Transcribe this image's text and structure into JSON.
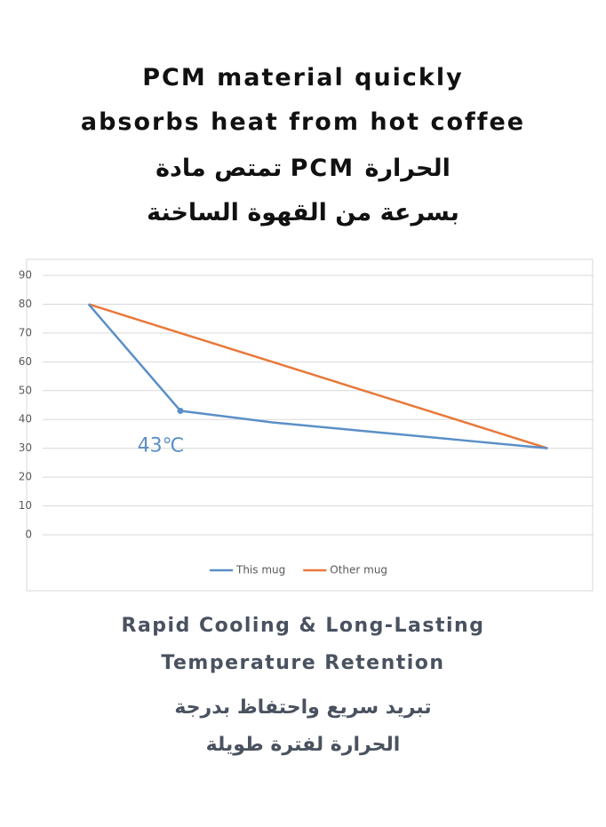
{
  "heading": [
    "PCM material quickly",
    "absorbs heat from hot coffee",
    "تمتص مادة PCM الحرارة",
    "بسرعة من القهوة الساخنة"
  ],
  "chart_data": {
    "type": "line",
    "categories": [
      null,
      null,
      null,
      null,
      null,
      null
    ],
    "series": [
      {
        "name": "This mug",
        "color": "#5b8fc7",
        "values": [
          80,
          43,
          39,
          36,
          33,
          30
        ]
      },
      {
        "name": "Other mug",
        "color": "#e8793a",
        "values": [
          80,
          70,
          60,
          50,
          40,
          30
        ]
      }
    ],
    "annotation": "43℃",
    "ylim": [
      0,
      90
    ],
    "yticks": [
      0,
      10,
      20,
      30,
      40,
      50,
      60,
      70,
      80,
      90
    ],
    "grid": true,
    "legend": "bottom"
  },
  "footer": [
    "Rapid Cooling & Long-Lasting",
    "Temperature Retention",
    "تبريد سريع واحتفاظ بدرجة",
    "الحرارة لفترة طويلة"
  ]
}
